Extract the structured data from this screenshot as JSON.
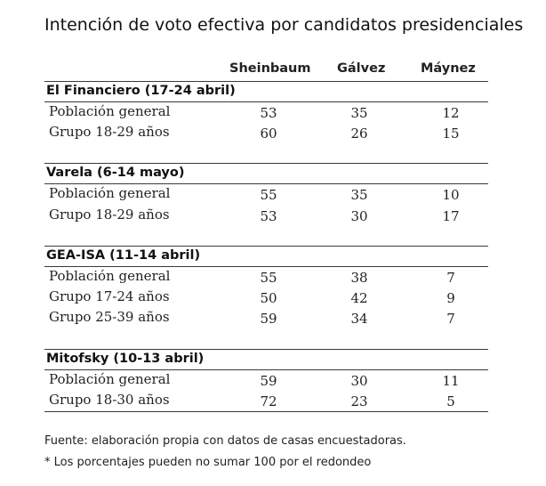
{
  "title": "Intención de voto efectiva por candidatos presidenciales",
  "columns": [
    "Sheinbaum",
    "Gálvez",
    "Máynez"
  ],
  "groups": [
    {
      "name": "El Financiero (17-24 abril)",
      "rows": [
        {
          "label": "Población general",
          "values": [
            "53",
            "35",
            "12"
          ]
        },
        {
          "label": "Grupo 18-29 años",
          "values": [
            "60",
            "26",
            "15"
          ]
        }
      ]
    },
    {
      "name": "Varela (6-14 mayo)",
      "rows": [
        {
          "label": "Población general",
          "values": [
            "55",
            "35",
            "10"
          ]
        },
        {
          "label": "Grupo 18-29 años",
          "values": [
            "53",
            "30",
            "17"
          ]
        }
      ]
    },
    {
      "name": "GEA-ISA (11-14 abril)",
      "rows": [
        {
          "label": "Población general",
          "values": [
            "55",
            "38",
            "7"
          ]
        },
        {
          "label": "Grupo 17-24 años",
          "values": [
            "50",
            "42",
            "9"
          ]
        },
        {
          "label": "Grupo 25-39 años",
          "values": [
            "59",
            "34",
            "7"
          ]
        }
      ]
    },
    {
      "name": "Mitofsky (10-13 abril)",
      "rows": [
        {
          "label": "Población general",
          "values": [
            "59",
            "30",
            "11"
          ]
        },
        {
          "label": "Grupo 18-30 años",
          "values": [
            "72",
            "23",
            "5"
          ]
        }
      ]
    }
  ],
  "footnotes": {
    "source": "Fuente: elaboración propia con datos de casas encuestadoras.",
    "note": "* Los porcentajes pueden no sumar 100 por el redondeo"
  }
}
